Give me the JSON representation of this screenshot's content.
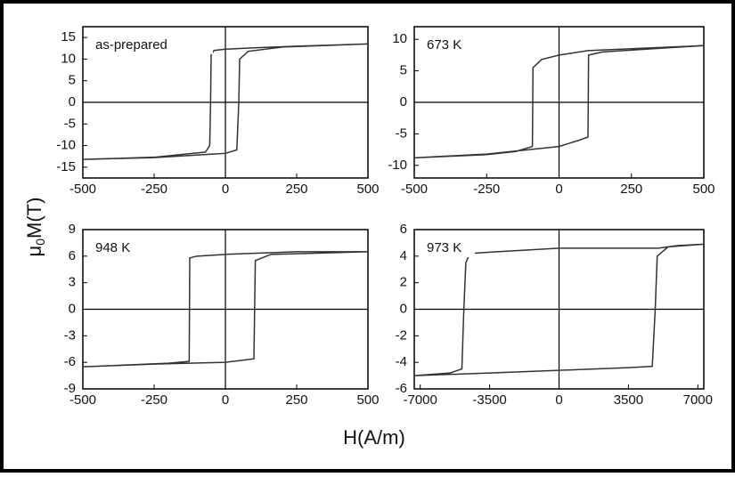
{
  "chart_data": [
    {
      "type": "line",
      "annotation": "as-prepared",
      "x": [
        500,
        250,
        100,
        0,
        -40,
        -50,
        -52,
        -55,
        -70,
        -250,
        -500,
        -250,
        -50,
        0,
        40,
        47,
        50,
        80,
        200,
        500
      ],
      "series": [
        {
          "color": "#333333",
          "values": [
            13.5,
            13,
            12.6,
            12.3,
            12,
            11,
            0,
            -10,
            -11.5,
            -12.7,
            -13.2,
            -12.8,
            -12,
            -11.8,
            -11,
            0,
            10,
            11.8,
            12.8,
            13.5
          ]
        }
      ],
      "xlim": [
        -500,
        500
      ],
      "ylim": [
        -17.5,
        17.5
      ],
      "xticks": [
        -500,
        -250,
        0,
        250,
        500
      ],
      "yticks": [
        -15,
        -10,
        -5,
        0,
        5,
        10,
        15
      ]
    },
    {
      "type": "line",
      "annotation": "673 K",
      "x": [
        500,
        250,
        100,
        0,
        -60,
        -90,
        -92,
        -150,
        -250,
        -500,
        -250,
        0,
        70,
        100,
        102,
        150,
        500
      ],
      "series": [
        {
          "color": "#333333",
          "values": [
            9,
            8.5,
            8.2,
            7.5,
            6.8,
            5.5,
            -7,
            -7.8,
            -8.3,
            -8.8,
            -8.2,
            -7,
            -6,
            -5.5,
            7.5,
            8,
            9
          ]
        }
      ],
      "xlim": [
        -500,
        500
      ],
      "ylim": [
        -12,
        12
      ],
      "xticks": [
        -500,
        -250,
        0,
        250,
        500
      ],
      "yticks": [
        -10,
        -5,
        0,
        5,
        10
      ]
    },
    {
      "type": "line",
      "annotation": "948 K",
      "x": [
        500,
        250,
        0,
        -100,
        -125,
        -127,
        -200,
        -500,
        -250,
        0,
        100,
        105,
        160,
        500
      ],
      "series": [
        {
          "color": "#333333",
          "values": [
            6.5,
            6.5,
            6.2,
            6,
            5.8,
            -5.9,
            -6.1,
            -6.5,
            -6.2,
            -6,
            -5.6,
            5.5,
            6.2,
            6.5
          ]
        }
      ],
      "xlim": [
        -500,
        500
      ],
      "ylim": [
        -9,
        9
      ],
      "xticks": [
        -500,
        -250,
        0,
        250,
        500
      ],
      "yticks": [
        -9,
        -6,
        -3,
        0,
        3,
        6,
        9
      ]
    },
    {
      "type": "line",
      "annotation": "973 K",
      "x": [
        7300,
        6000,
        5000,
        0,
        -3500,
        -4500,
        -4700,
        -4800,
        -4900,
        -5500,
        -7300,
        -3500,
        0,
        3500,
        4700,
        4850,
        4950,
        5500,
        7300
      ],
      "series": [
        {
          "color": "#333333",
          "values": [
            4.9,
            4.8,
            4.6,
            4.6,
            4.3,
            4.2,
            3.5,
            0,
            -4.5,
            -4.8,
            -5,
            -4.8,
            -4.6,
            -4.4,
            -4.3,
            0,
            4,
            4.7,
            4.9
          ]
        }
      ],
      "xlim": [
        -7300,
        7300
      ],
      "ylim": [
        -6,
        6
      ],
      "xticks": [
        -7000,
        -3500,
        0,
        3500,
        7000
      ],
      "yticks": [
        -6,
        -4,
        -2,
        0,
        2,
        4,
        6
      ]
    }
  ],
  "ylabel": [
    "μ",
    "0",
    "M(T)"
  ],
  "xlabel": "H(A/m)"
}
